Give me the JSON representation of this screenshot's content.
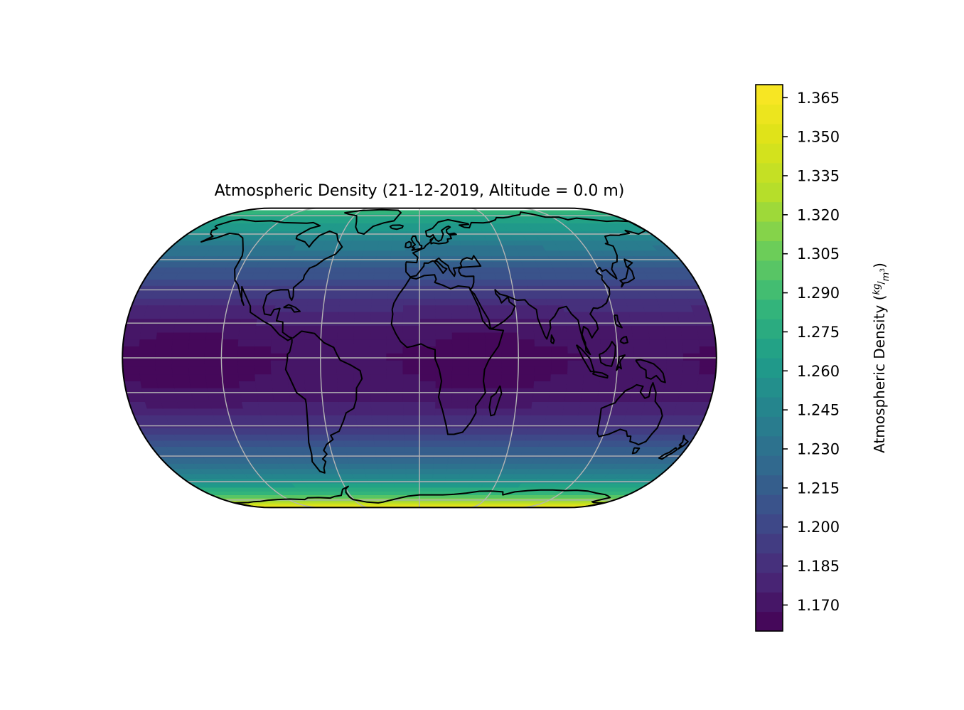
{
  "chart_data": {
    "type": "heatmap",
    "projection": "Eckert IV",
    "title": "Atmospheric Density (21-12-2019, Altitude = 0.0 m)",
    "variable": "Atmospheric Density",
    "units": "kg/m³",
    "date": "21-12-2019",
    "altitude_m": 0.0,
    "colormap": "viridis",
    "colorbar": {
      "label": "Atmospheric Density",
      "units_numerator": "kg",
      "units_denominator": "m",
      "units_exponent": "3",
      "vmin": 1.16,
      "vmax": 1.37,
      "level_step": 0.0075,
      "ticks": [
        1.17,
        1.185,
        1.2,
        1.215,
        1.23,
        1.245,
        1.26,
        1.275,
        1.29,
        1.305,
        1.32,
        1.335,
        1.35,
        1.365
      ],
      "tick_labels": [
        "1.170",
        "1.185",
        "1.200",
        "1.215",
        "1.230",
        "1.245",
        "1.260",
        "1.275",
        "1.290",
        "1.305",
        "1.320",
        "1.335",
        "1.350",
        "1.365"
      ]
    },
    "data_extent": {
      "lat_min": -85,
      "lat_max": 82,
      "lon_min": -180,
      "lon_max": 180
    },
    "latitude_profile": [
      {
        "lat": 82,
        "value": 1.285
      },
      {
        "lat": 70,
        "value": 1.268
      },
      {
        "lat": 60,
        "value": 1.252
      },
      {
        "lat": 50,
        "value": 1.232
      },
      {
        "lat": 40,
        "value": 1.212
      },
      {
        "lat": 30,
        "value": 1.195
      },
      {
        "lat": 20,
        "value": 1.18
      },
      {
        "lat": 10,
        "value": 1.17
      },
      {
        "lat": 0,
        "value": 1.166
      },
      {
        "lat": -10,
        "value": 1.168
      },
      {
        "lat": -20,
        "value": 1.175
      },
      {
        "lat": -30,
        "value": 1.19
      },
      {
        "lat": -40,
        "value": 1.21
      },
      {
        "lat": -50,
        "value": 1.232
      },
      {
        "lat": -60,
        "value": 1.258
      },
      {
        "lat": -65,
        "value": 1.272
      },
      {
        "lat": -70,
        "value": 1.29
      },
      {
        "lat": -75,
        "value": 1.318
      },
      {
        "lat": -80,
        "value": 1.345
      },
      {
        "lat": -85,
        "value": 1.365
      }
    ],
    "gridlines": {
      "meridians_deg": [
        -180,
        -120,
        -60,
        0,
        60,
        120,
        180
      ],
      "parallels_deg": [
        -75,
        -60,
        -45,
        -30,
        -15,
        0,
        15,
        30,
        45,
        60,
        75
      ]
    },
    "basemap_features": [
      "coastlines",
      "gridlines"
    ]
  }
}
